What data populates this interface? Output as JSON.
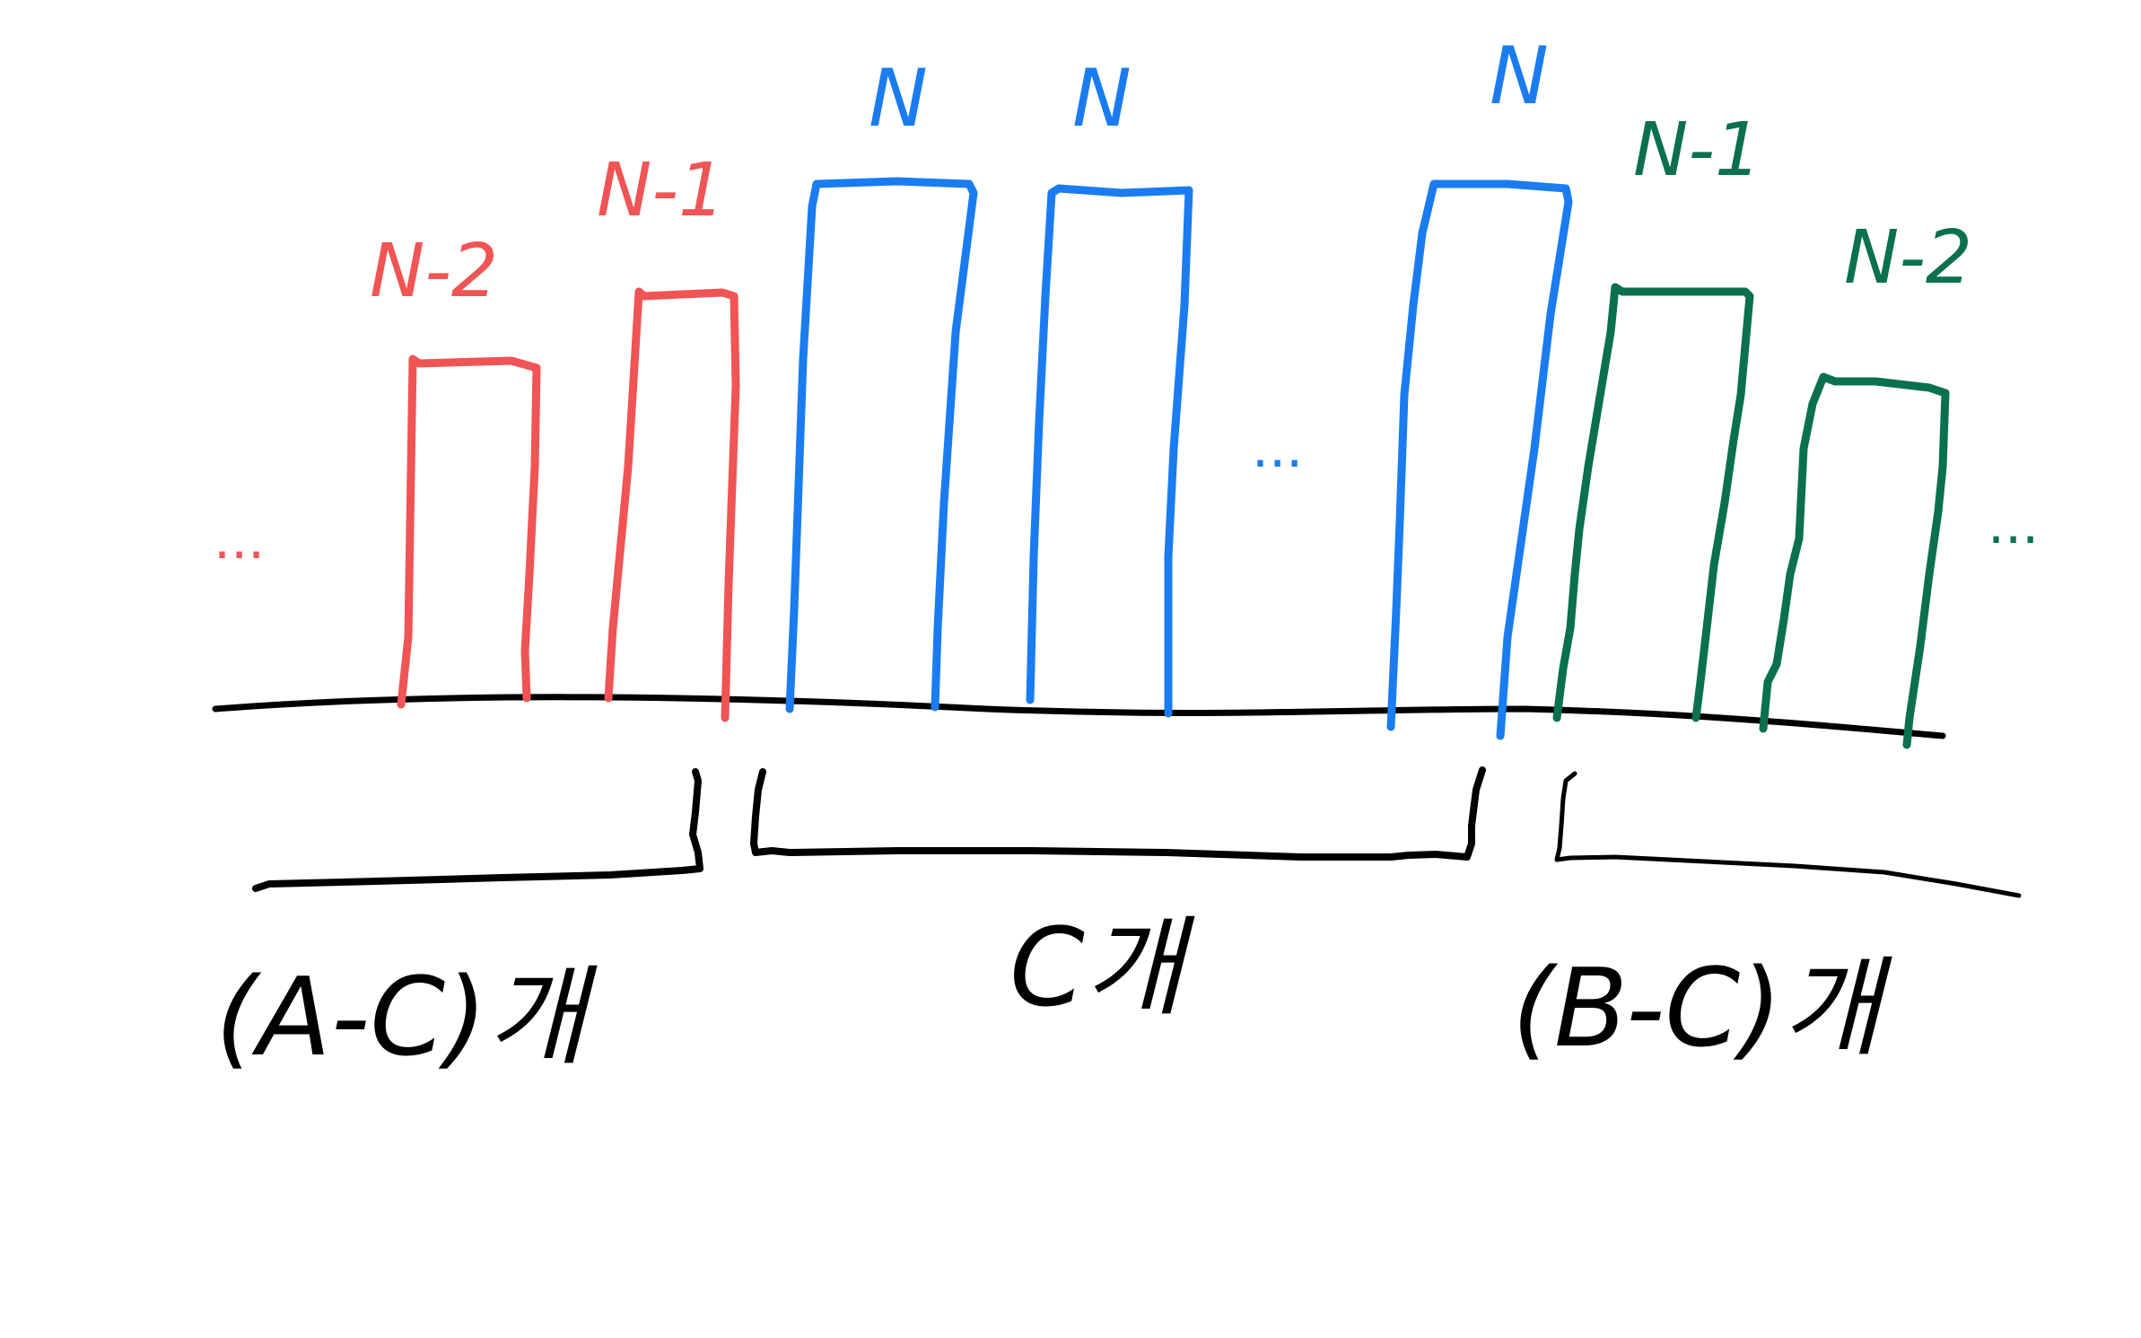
{
  "colors": {
    "background": "#ffffff",
    "ink": "#000000",
    "red": "#f05454",
    "blue": "#1a7cf0",
    "green": "#0b7050"
  },
  "bars": [
    {
      "group": "red",
      "label": "N-2"
    },
    {
      "group": "red",
      "label": "N-1"
    },
    {
      "group": "blue",
      "label": "N"
    },
    {
      "group": "blue",
      "label": "N"
    },
    {
      "group": "blue",
      "label": "N"
    },
    {
      "group": "green",
      "label": "N-1"
    },
    {
      "group": "green",
      "label": "N-2"
    }
  ],
  "ellipses": {
    "left": "...",
    "middle": "...",
    "right": "..."
  },
  "brackets": {
    "left": {
      "label": "(A-C)개"
    },
    "middle": {
      "label": "C개"
    },
    "right": {
      "label": "(B-C)개"
    }
  }
}
